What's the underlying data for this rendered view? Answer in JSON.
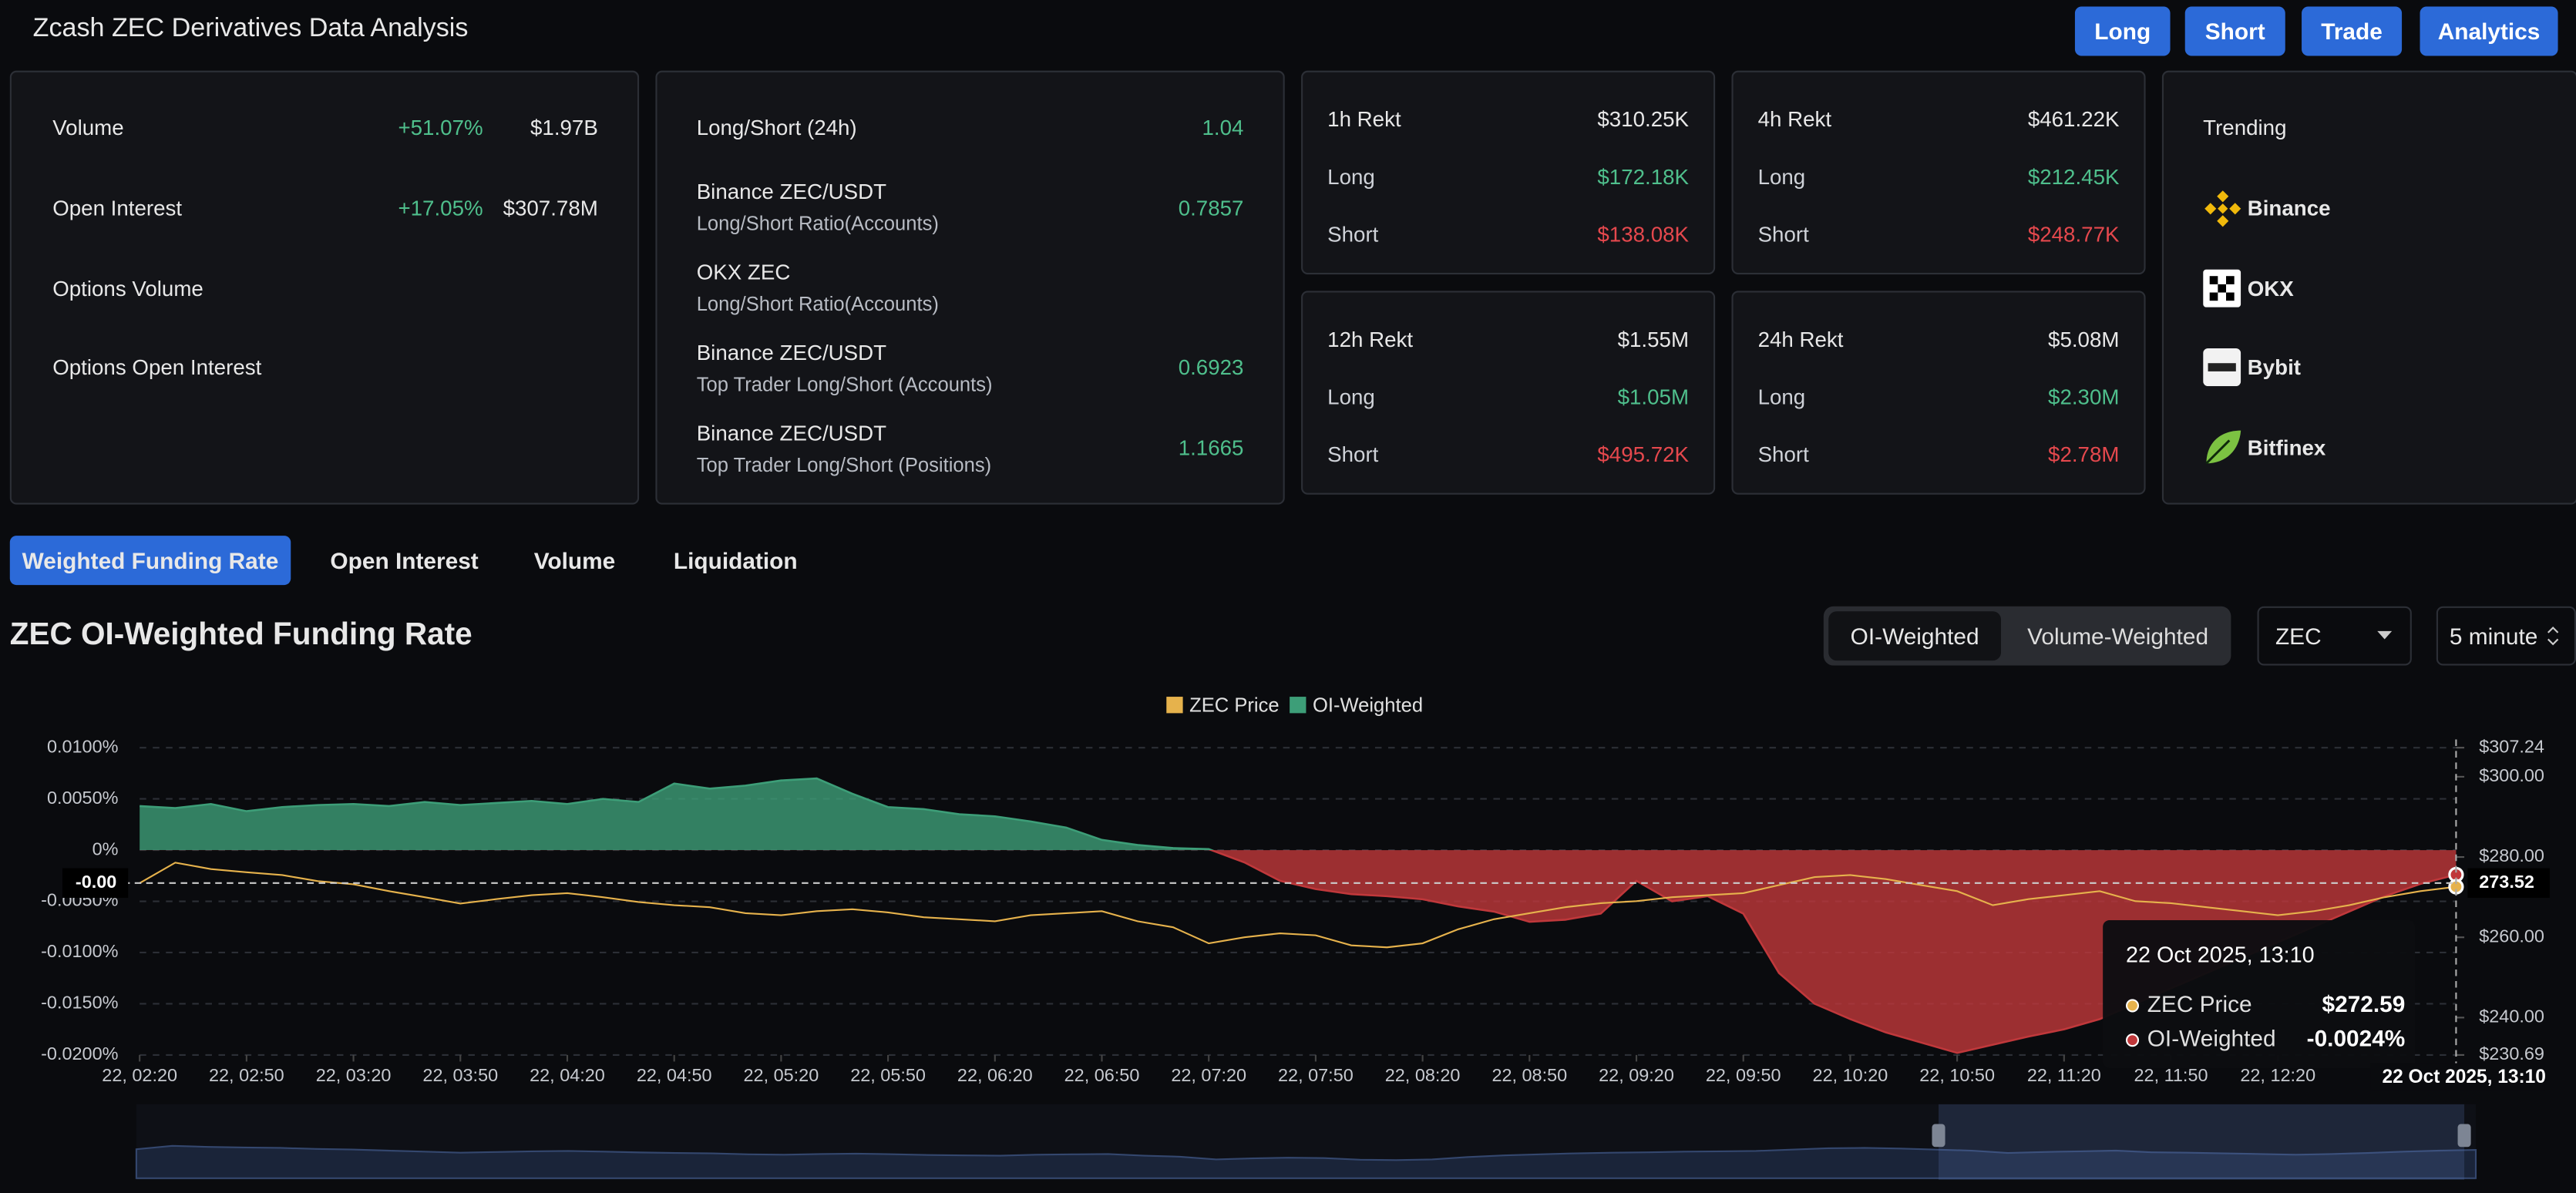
{
  "header": {
    "title": "Zcash ZEC Derivatives Data Analysis",
    "buttons": [
      "Long",
      "Short",
      "Trade",
      "Analytics"
    ]
  },
  "overview": {
    "rows": [
      {
        "label": "Volume",
        "change": "+51.07%",
        "value": "$1.97B"
      },
      {
        "label": "Open Interest",
        "change": "+17.05%",
        "value": "$307.78M"
      },
      {
        "label": "Options Volume"
      },
      {
        "label": "Options Open Interest"
      }
    ]
  },
  "ratios": {
    "rows": [
      {
        "name": "Long/Short (24h)",
        "value": "1.04"
      },
      {
        "name": "Binance ZEC/USDT",
        "label": "Long/Short Ratio(Accounts)",
        "value": "0.7857"
      },
      {
        "name": "OKX ZEC",
        "label": "Long/Short Ratio(Accounts)"
      },
      {
        "name": "Binance ZEC/USDT",
        "label": "Top Trader Long/Short (Accounts)",
        "value": "0.6923"
      },
      {
        "name": "Binance ZEC/USDT",
        "label": "Top Trader Long/Short (Positions)",
        "value": "1.1665"
      }
    ]
  },
  "rekt": [
    {
      "rows": [
        [
          "1h Rekt",
          "$310.25K"
        ],
        [
          "Long",
          "$172.18K"
        ],
        [
          "Short",
          "$138.08K"
        ]
      ]
    },
    {
      "rows": [
        [
          "4h Rekt",
          "$461.22K"
        ],
        [
          "Long",
          "$212.45K"
        ],
        [
          "Short",
          "$248.77K"
        ]
      ]
    },
    {
      "rows": [
        [
          "12h Rekt",
          "$1.55M"
        ],
        [
          "Long",
          "$1.05M"
        ],
        [
          "Short",
          "$495.72K"
        ]
      ]
    },
    {
      "rows": [
        [
          "24h Rekt",
          "$5.08M"
        ],
        [
          "Long",
          "$2.30M"
        ],
        [
          "Short",
          "$2.78M"
        ]
      ]
    }
  ],
  "trending": {
    "title": "Trending",
    "items": [
      "Binance",
      "OKX",
      "Bybit",
      "Bitfinex"
    ]
  },
  "tabs": [
    "Weighted Funding Rate",
    "Open Interest",
    "Volume",
    "Liquidation"
  ],
  "section_title": "ZEC OI-Weighted Funding Rate",
  "toggle": [
    "OI-Weighted",
    "Volume-Weighted"
  ],
  "selects": [
    "ZEC",
    "5 minute"
  ],
  "chart_data": {
    "type": "line",
    "grid": true,
    "x": [
      "22, 02:20",
      "22, 02:30",
      "22, 02:40",
      "22, 02:50",
      "22, 03:00",
      "22, 03:10",
      "22, 03:20",
      "22, 03:30",
      "22, 03:40",
      "22, 03:50",
      "22, 04:00",
      "22, 04:10",
      "22, 04:20",
      "22, 04:30",
      "22, 04:40",
      "22, 04:50",
      "22, 05:00",
      "22, 05:10",
      "22, 05:20",
      "22, 05:30",
      "22, 05:40",
      "22, 05:50",
      "22, 06:00",
      "22, 06:10",
      "22, 06:20",
      "22, 06:30",
      "22, 06:40",
      "22, 06:50",
      "22, 07:00",
      "22, 07:10",
      "22, 07:20",
      "22, 07:30",
      "22, 07:40",
      "22, 07:50",
      "22, 08:00",
      "22, 08:10",
      "22, 08:20",
      "22, 08:30",
      "22, 08:40",
      "22, 08:50",
      "22, 09:00",
      "22, 09:10",
      "22, 09:20",
      "22, 09:30",
      "22, 09:40",
      "22, 09:50",
      "22, 10:00",
      "22, 10:10",
      "22, 10:20",
      "22, 10:30",
      "22, 10:40",
      "22, 10:50",
      "22, 11:00",
      "22, 11:10",
      "22, 11:20",
      "22, 11:30",
      "22, 11:40",
      "22, 11:50",
      "22, 12:00",
      "22, 12:10",
      "22, 12:20",
      "22, 12:30",
      "22, 12:40",
      "22, 12:50",
      "22, 13:00",
      "22, 13:10"
    ],
    "xticks": [
      "22, 02:20",
      "22, 02:50",
      "22, 03:20",
      "22, 03:50",
      "22, 04:20",
      "22, 04:50",
      "22, 05:20",
      "22, 05:50",
      "22, 06:20",
      "22, 06:50",
      "22, 07:20",
      "22, 07:50",
      "22, 08:20",
      "22, 08:50",
      "22, 09:20",
      "22, 09:50",
      "22, 10:20",
      "22, 10:50",
      "22, 11:20",
      "22, 11:50",
      "22, 12:20"
    ],
    "series": [
      {
        "name": "ZEC Price",
        "color": "#e6b24c",
        "axis": "y2",
        "values": [
          273.5,
          278.6,
          277.0,
          276.2,
          275.5,
          274.0,
          273.2,
          271.5,
          270.0,
          268.4,
          269.5,
          270.5,
          271.0,
          270.0,
          268.8,
          268.0,
          267.5,
          266.0,
          265.5,
          266.5,
          267.0,
          266.2,
          265.0,
          264.5,
          264.0,
          265.5,
          266.0,
          266.5,
          264.0,
          262.5,
          258.5,
          260.0,
          261.0,
          260.5,
          258.0,
          257.5,
          258.5,
          262.0,
          264.5,
          266.0,
          267.5,
          268.5,
          269.0,
          270.0,
          270.5,
          271.0,
          273.0,
          275.0,
          275.5,
          274.5,
          273.0,
          271.5,
          268.0,
          269.5,
          270.5,
          271.5,
          269.0,
          268.5,
          267.5,
          266.5,
          265.5,
          266.5,
          268.0,
          270.0,
          271.5,
          272.59
        ]
      },
      {
        "name": "OI-Weighted",
        "color": "#3d9e78",
        "negative_color": "#c0383b",
        "values": [
          0.0043,
          0.0041,
          0.0045,
          0.0038,
          0.0042,
          0.0044,
          0.0045,
          0.0043,
          0.0047,
          0.0044,
          0.0046,
          0.0048,
          0.0045,
          0.005,
          0.0047,
          0.0065,
          0.006,
          0.0063,
          0.0068,
          0.007,
          0.0055,
          0.0042,
          0.004,
          0.0035,
          0.0033,
          0.0028,
          0.0022,
          0.001,
          0.0005,
          0.0002,
          0.0001,
          -0.0012,
          -0.003,
          -0.0038,
          -0.0043,
          -0.0045,
          -0.0048,
          -0.0055,
          -0.006,
          -0.007,
          -0.0068,
          -0.0062,
          -0.003,
          -0.005,
          -0.0045,
          -0.0062,
          -0.012,
          -0.015,
          -0.0165,
          -0.0178,
          -0.0188,
          -0.0198,
          -0.019,
          -0.0182,
          -0.0175,
          -0.0165,
          -0.015,
          -0.0135,
          -0.012,
          -0.0105,
          -0.009,
          -0.0075,
          -0.006,
          -0.0045,
          -0.0033,
          -0.0024
        ]
      }
    ],
    "ylim": [
      -0.02,
      0.01
    ],
    "yticks": [
      {
        "value": 0.01,
        "label": "0.0100%"
      },
      {
        "value": 0.005,
        "label": "0.0050%"
      },
      {
        "value": 0,
        "label": "0%"
      },
      {
        "value": -0.005,
        "label": "-0.0050%"
      },
      {
        "value": -0.01,
        "label": "-0.0100%"
      },
      {
        "value": -0.015,
        "label": "-0.0150%"
      },
      {
        "value": -0.02,
        "label": "-0.0200%"
      }
    ],
    "y2lim": [
      230.69,
      307.24
    ],
    "y2ticks": [
      {
        "value": 307.24,
        "label": "$307.24"
      },
      {
        "value": 300,
        "label": "$300.00"
      },
      {
        "value": 280,
        "label": "$280.00"
      },
      {
        "value": 260,
        "label": "$260.00"
      },
      {
        "value": 240,
        "label": "$240.00"
      },
      {
        "value": 230.69,
        "label": "$230.69"
      }
    ],
    "crosshair": {
      "x": "22 Oct 2025, 13:10",
      "y2": 273.52,
      "y_label": "-0.00"
    },
    "tooltip": {
      "title": "22 Oct 2025, 13:10",
      "values": [
        "$272.59",
        "-0.0024%"
      ]
    }
  }
}
